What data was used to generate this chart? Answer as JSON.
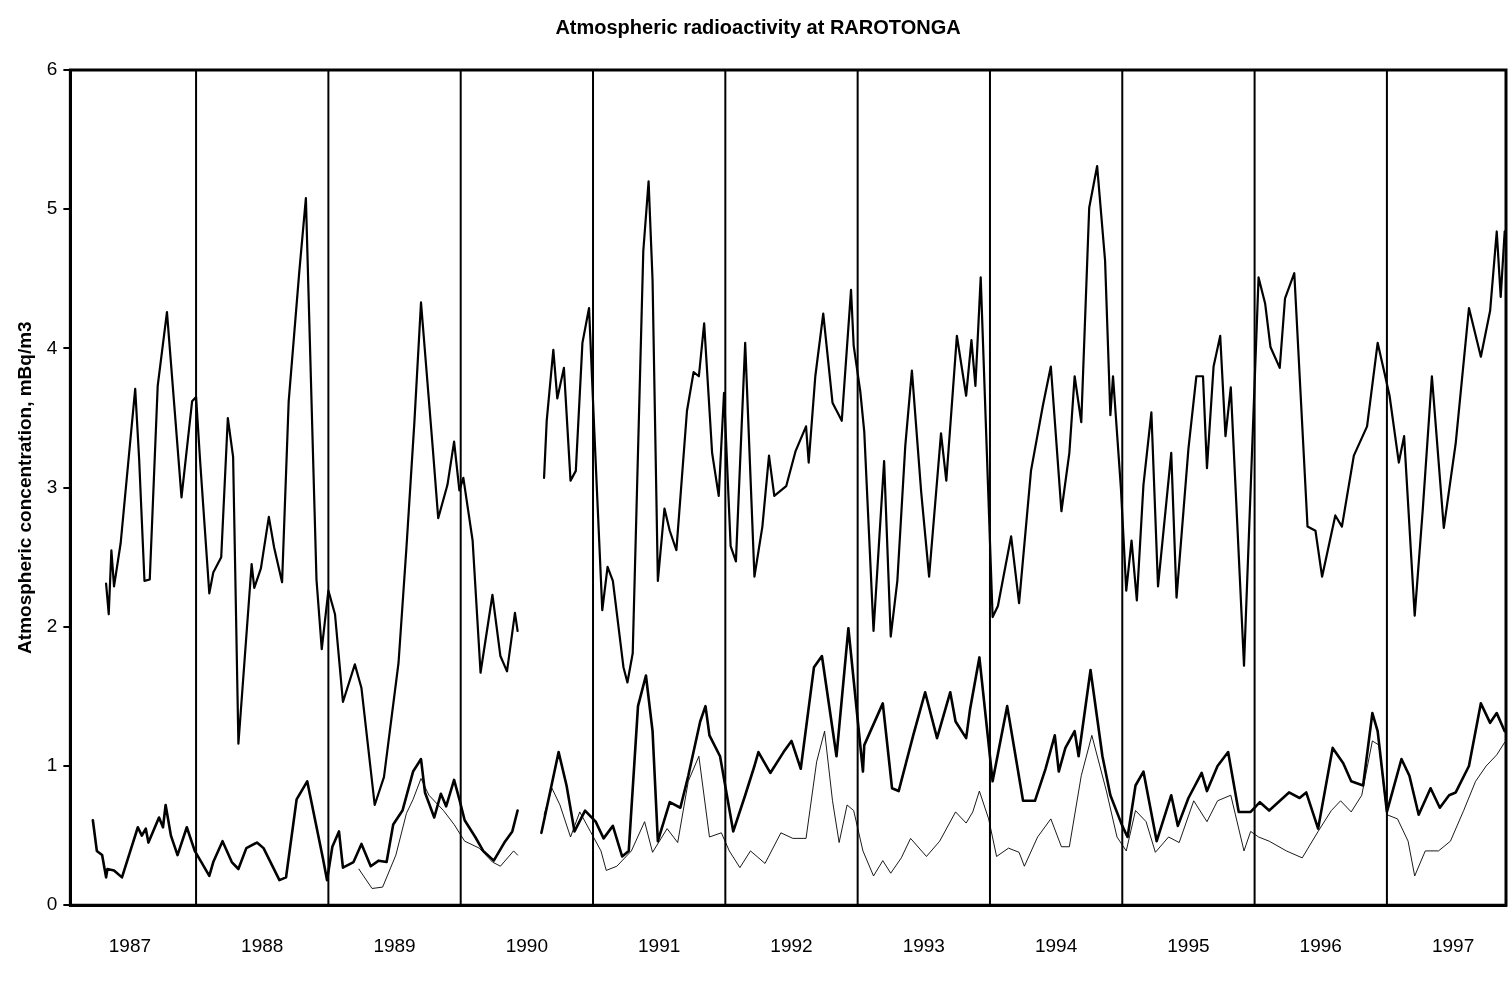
{
  "chart_data": {
    "type": "line",
    "title": "Atmospheric radioactivity at RAROTONGA",
    "ylabel": "Atmospheric concentration, mBq/m3",
    "xlim": [
      1987.05,
      1997.9
    ],
    "ylim": [
      0,
      6
    ],
    "yticks": [
      0,
      1,
      2,
      3,
      4,
      5,
      6
    ],
    "xticks": [
      {
        "value": 1987.5,
        "label": "1987"
      },
      {
        "value": 1988.5,
        "label": "1988"
      },
      {
        "value": 1989.5,
        "label": "1989"
      },
      {
        "value": 1990.5,
        "label": "1990"
      },
      {
        "value": 1991.5,
        "label": "1991"
      },
      {
        "value": 1992.5,
        "label": "1992"
      },
      {
        "value": 1993.5,
        "label": "1993"
      },
      {
        "value": 1994.5,
        "label": "1994"
      },
      {
        "value": 1995.5,
        "label": "1995"
      },
      {
        "value": 1996.5,
        "label": "1996"
      },
      {
        "value": 1997.5,
        "label": "1997"
      }
    ],
    "grid": false,
    "legend": false,
    "marker": "none",
    "line_style": "solid",
    "ref_lines": [
      {
        "axis": "x",
        "value": 1988,
        "color": "#000000"
      },
      {
        "axis": "x",
        "value": 1989,
        "color": "#000000"
      },
      {
        "axis": "x",
        "value": 1990,
        "color": "#000000"
      },
      {
        "axis": "x",
        "value": 1991,
        "color": "#000000"
      },
      {
        "axis": "x",
        "value": 1992,
        "color": "#000000"
      },
      {
        "axis": "x",
        "value": 1993,
        "color": "#000000"
      },
      {
        "axis": "x",
        "value": 1994,
        "color": "#000000"
      },
      {
        "axis": "x",
        "value": 1995,
        "color": "#000000"
      },
      {
        "axis": "x",
        "value": 1996,
        "color": "#000000"
      },
      {
        "axis": "x",
        "value": 1997,
        "color": "#000000"
      }
    ],
    "series": [
      {
        "color": "#000000",
        "x": [
          1987.32,
          1987.34,
          1987.36,
          1987.38,
          1987.43,
          1987.54,
          1987.57,
          1987.61,
          1987.65,
          1987.71,
          1987.78,
          1987.89,
          1987.97,
          1988.0,
          1988.03,
          1988.1,
          1988.13,
          1988.19,
          1988.24,
          1988.28,
          1988.32,
          1988.42,
          1988.44,
          1988.49,
          1988.55,
          1988.59,
          1988.65,
          1988.7,
          1988.78,
          1988.83,
          1988.91,
          1988.95,
          1989.0,
          1989.05,
          1989.11,
          1989.2,
          1989.25,
          1989.35,
          1989.42,
          1989.53,
          1989.59,
          1989.65,
          1989.7,
          1989.79,
          1989.83,
          1989.9,
          1989.95,
          1989.99,
          1990.02,
          1990.09,
          1990.15,
          1990.24,
          1990.3,
          1990.35,
          1990.41,
          1990.43,
          1990.5,
          1990.63,
          1990.65,
          1990.7,
          1990.73,
          1990.78,
          1990.83,
          1990.87,
          1990.92,
          1990.97,
          1991.01,
          1991.07,
          1991.11,
          1991.15,
          1991.23,
          1991.26,
          1991.3,
          1991.38,
          1991.42,
          1991.45,
          1991.49,
          1991.54,
          1991.58,
          1991.63,
          1991.71,
          1991.76,
          1991.8,
          1991.84,
          1991.9,
          1991.95,
          1991.99,
          1992.04,
          1992.08,
          1992.15,
          1992.22,
          1992.28,
          1992.33,
          1992.37,
          1992.46,
          1992.53,
          1992.61,
          1992.63,
          1992.68,
          1992.74,
          1992.81,
          1992.88,
          1992.95,
          1992.97,
          1993.02,
          1993.05,
          1993.12,
          1993.2,
          1993.25,
          1993.3,
          1993.36,
          1993.41,
          1993.48,
          1993.54,
          1993.63,
          1993.67,
          1993.75,
          1993.82,
          1993.86,
          1993.89,
          1993.93,
          1994.02,
          1994.06,
          1994.16,
          1994.22,
          1994.31,
          1994.4,
          1994.46,
          1994.54,
          1994.6,
          1994.64,
          1994.69,
          1994.75,
          1994.81,
          1994.87,
          1994.91,
          1994.93,
          1994.99,
          1995.03,
          1995.07,
          1995.11,
          1995.16,
          1995.22,
          1995.27,
          1995.37,
          1995.41,
          1995.5,
          1995.56,
          1995.61,
          1995.64,
          1995.69,
          1995.74,
          1995.78,
          1995.82,
          1995.92,
          1996.03,
          1996.08,
          1996.12,
          1996.19,
          1996.23,
          1996.3,
          1996.4,
          1996.46,
          1996.51,
          1996.61,
          1996.66,
          1996.75,
          1996.85,
          1996.93,
          1996.98,
          1997.02,
          1997.09,
          1997.13,
          1997.21,
          1997.27,
          1997.34,
          1997.43,
          1997.52,
          1997.62,
          1997.71,
          1997.78,
          1997.83,
          1997.86,
          1997.89
        ],
        "values": [
          2.31,
          2.09,
          2.55,
          2.29,
          2.6,
          3.71,
          3.2,
          2.33,
          2.34,
          3.73,
          4.26,
          2.93,
          3.62,
          3.65,
          3.2,
          2.24,
          2.39,
          2.5,
          3.5,
          3.22,
          1.16,
          2.45,
          2.28,
          2.42,
          2.79,
          2.57,
          2.32,
          3.62,
          4.55,
          5.08,
          2.34,
          1.84,
          2.26,
          2.09,
          1.46,
          1.73,
          1.56,
          0.72,
          0.92,
          1.74,
          2.57,
          3.47,
          4.33,
          3.27,
          2.78,
          3.02,
          3.33,
          2.98,
          3.07,
          2.62,
          1.67,
          2.23,
          1.79,
          1.68,
          2.1,
          1.97,
          null,
          3.07,
          3.48,
          3.99,
          3.64,
          3.86,
          3.05,
          3.12,
          4.04,
          4.29,
          3.4,
          2.12,
          2.43,
          2.33,
          1.71,
          1.6,
          1.81,
          4.7,
          5.2,
          4.49,
          2.33,
          2.85,
          2.69,
          2.55,
          3.55,
          3.83,
          3.8,
          4.18,
          3.25,
          2.94,
          3.68,
          2.58,
          2.47,
          4.04,
          2.36,
          2.72,
          3.23,
          2.94,
          3.01,
          3.26,
          3.44,
          3.18,
          3.8,
          4.25,
          3.61,
          3.48,
          4.42,
          4.02,
          3.69,
          3.4,
          1.97,
          3.19,
          1.93,
          2.33,
          3.3,
          3.84,
          2.97,
          2.36,
          3.39,
          3.05,
          4.09,
          3.66,
          4.06,
          3.73,
          4.51,
          2.07,
          2.15,
          2.65,
          2.17,
          3.12,
          3.59,
          3.87,
          2.83,
          3.25,
          3.8,
          3.47,
          5.01,
          5.31,
          4.63,
          3.52,
          3.8,
          2.99,
          2.26,
          2.62,
          2.19,
          3.02,
          3.54,
          2.29,
          3.25,
          2.21,
          3.28,
          3.8,
          3.8,
          3.14,
          3.87,
          4.09,
          3.37,
          3.72,
          1.72,
          4.51,
          4.32,
          4.01,
          3.86,
          4.36,
          4.54,
          2.72,
          2.69,
          2.36,
          2.8,
          2.72,
          3.23,
          3.44,
          4.04,
          3.83,
          3.66,
          3.18,
          3.37,
          2.08,
          2.83,
          3.8,
          2.71,
          3.32,
          4.29,
          3.94,
          4.27,
          4.84,
          4.37,
          4.84
        ]
      },
      {
        "color": "#000000",
        "x": [
          1987.22,
          1987.25,
          1987.29,
          1987.32,
          1987.33,
          1987.38,
          1987.44,
          1987.51,
          1987.56,
          1987.59,
          1987.62,
          1987.64,
          1987.72,
          1987.75,
          1987.77,
          1987.81,
          1987.86,
          1987.93,
          1987.99,
          1988.04,
          1988.1,
          1988.13,
          1988.2,
          1988.27,
          1988.32,
          1988.38,
          1988.46,
          1988.51,
          1988.63,
          1988.68,
          1988.76,
          1988.84,
          1988.9,
          1988.96,
          1988.99,
          1989.03,
          1989.08,
          1989.11,
          1989.19,
          1989.25,
          1989.32,
          1989.38,
          1989.44,
          1989.49,
          1989.56,
          1989.64,
          1989.7,
          1989.73,
          1989.8,
          1989.85,
          1989.89,
          1989.95,
          1989.99,
          1990.03,
          1990.11,
          1990.17,
          1990.25,
          1990.33,
          1990.39,
          1990.43,
          1990.5,
          1990.61,
          1990.74,
          1990.8,
          1990.86,
          1990.94,
          1991.02,
          1991.08,
          1991.15,
          1991.22,
          1991.27,
          1991.34,
          1991.4,
          1991.45,
          1991.49,
          1991.58,
          1991.66,
          1991.72,
          1991.81,
          1991.85,
          1991.88,
          1991.96,
          1992.06,
          1992.15,
          1992.22,
          1992.25,
          1992.34,
          1992.44,
          1992.5,
          1992.57,
          1992.67,
          1992.73,
          1992.84,
          1992.93,
          1993.04,
          1993.05,
          1993.19,
          1993.26,
          1993.31,
          1993.42,
          1993.51,
          1993.6,
          1993.7,
          1993.74,
          1993.82,
          1993.85,
          1993.92,
          1994.02,
          1994.13,
          1994.25,
          1994.34,
          1994.42,
          1994.49,
          1994.52,
          1994.57,
          1994.64,
          1994.67,
          1994.76,
          1994.85,
          1994.91,
          1995.0,
          1995.04,
          1995.1,
          1995.16,
          1995.26,
          1995.37,
          1995.42,
          1995.5,
          1995.6,
          1995.64,
          1995.72,
          1995.8,
          1995.88,
          1995.97,
          1996.04,
          1996.11,
          1996.26,
          1996.34,
          1996.39,
          1996.48,
          1996.59,
          1996.67,
          1996.73,
          1996.82,
          1996.89,
          1996.93,
          1997.0,
          1997.11,
          1997.17,
          1997.24,
          1997.33,
          1997.4,
          1997.47,
          1997.52,
          1997.62,
          1997.71,
          1997.78,
          1997.83,
          1997.89
        ],
        "values": [
          0.61,
          0.39,
          0.36,
          0.2,
          0.26,
          0.25,
          0.2,
          0.41,
          0.56,
          0.5,
          0.55,
          0.45,
          0.63,
          0.56,
          0.72,
          0.5,
          0.36,
          0.56,
          0.39,
          0.31,
          0.21,
          0.31,
          0.46,
          0.31,
          0.26,
          0.41,
          0.45,
          0.41,
          0.18,
          0.2,
          0.76,
          0.89,
          0.61,
          0.33,
          0.18,
          0.42,
          0.53,
          0.27,
          0.31,
          0.44,
          0.28,
          0.32,
          0.31,
          0.58,
          0.68,
          0.96,
          1.05,
          0.81,
          0.63,
          0.8,
          0.71,
          0.9,
          0.76,
          0.61,
          0.49,
          0.39,
          0.32,
          0.45,
          0.53,
          0.68,
          null,
          0.52,
          1.1,
          0.86,
          0.53,
          0.68,
          0.6,
          0.48,
          0.57,
          0.35,
          0.39,
          1.43,
          1.65,
          1.25,
          0.46,
          0.74,
          0.7,
          0.93,
          1.32,
          1.43,
          1.22,
          1.07,
          0.53,
          0.79,
          1.0,
          1.1,
          0.95,
          1.1,
          1.18,
          0.98,
          1.71,
          1.79,
          1.07,
          1.99,
          0.96,
          1.15,
          1.45,
          0.84,
          0.82,
          1.22,
          1.53,
          1.2,
          1.53,
          1.32,
          1.2,
          1.41,
          1.78,
          0.89,
          1.43,
          0.75,
          0.75,
          0.98,
          1.22,
          0.96,
          1.13,
          1.25,
          1.07,
          1.69,
          1.07,
          0.79,
          0.57,
          0.49,
          0.86,
          0.96,
          0.46,
          0.79,
          0.57,
          0.77,
          0.95,
          0.82,
          1.0,
          1.1,
          0.67,
          0.67,
          0.74,
          0.68,
          0.81,
          0.77,
          0.81,
          0.55,
          1.13,
          1.02,
          0.89,
          0.86,
          1.38,
          1.25,
          0.67,
          1.05,
          0.93,
          0.65,
          0.84,
          0.7,
          0.79,
          0.81,
          1.0,
          1.45,
          1.31,
          1.38,
          1.25
        ]
      },
      {
        "color": "#000000",
        "x": [
          1989.23,
          1989.33,
          1989.41,
          1989.51,
          1989.59,
          1989.64,
          1989.7,
          1989.76,
          1989.87,
          1989.95,
          1990.03,
          1990.14,
          1990.24,
          1990.3,
          1990.4,
          1990.43,
          1990.5,
          1990.63,
          1990.69,
          1990.75,
          1990.83,
          1990.9,
          1990.98,
          1991.06,
          1991.1,
          1991.18,
          1991.29,
          1991.39,
          1991.45,
          1991.56,
          1991.64,
          1991.72,
          1991.8,
          1991.88,
          1991.97,
          1992.03,
          1992.11,
          1992.19,
          1992.3,
          1992.42,
          1992.51,
          1992.61,
          1992.69,
          1992.75,
          1992.81,
          1992.86,
          1992.92,
          1992.97,
          1993.04,
          1993.12,
          1993.19,
          1993.25,
          1993.33,
          1993.4,
          1993.52,
          1993.62,
          1993.74,
          1993.82,
          1993.87,
          1993.92,
          1993.99,
          1994.05,
          1994.14,
          1994.22,
          1994.26,
          1994.36,
          1994.46,
          1994.54,
          1994.6,
          1994.69,
          1994.77,
          1994.88,
          1994.96,
          1995.03,
          1995.1,
          1995.18,
          1995.25,
          1995.35,
          1995.43,
          1995.54,
          1995.64,
          1995.72,
          1995.82,
          1995.92,
          1995.97,
          1996.03,
          1996.11,
          1996.24,
          1996.36,
          1996.48,
          1996.58,
          1996.65,
          1996.73,
          1996.81,
          1996.89,
          1996.94,
          1997.0,
          1997.08,
          1997.16,
          1997.21,
          1997.29,
          1997.39,
          1997.48,
          1997.58,
          1997.67,
          1997.75,
          1997.83,
          1997.89
        ],
        "values": [
          0.26,
          0.12,
          0.13,
          0.36,
          0.66,
          0.76,
          0.91,
          0.79,
          0.68,
          0.58,
          0.46,
          0.41,
          0.31,
          0.28,
          0.39,
          0.36,
          null,
          0.65,
          0.84,
          0.72,
          0.49,
          0.67,
          0.53,
          0.39,
          0.25,
          0.28,
          0.39,
          0.6,
          0.38,
          0.55,
          0.45,
          0.89,
          1.07,
          0.49,
          0.52,
          0.39,
          0.27,
          0.39,
          0.3,
          0.52,
          0.48,
          0.48,
          1.03,
          1.25,
          0.75,
          0.45,
          0.72,
          0.68,
          0.39,
          0.21,
          0.32,
          0.23,
          0.34,
          0.48,
          0.35,
          0.46,
          0.67,
          0.59,
          0.67,
          0.82,
          0.62,
          0.35,
          0.41,
          0.38,
          0.28,
          0.49,
          0.62,
          0.42,
          0.42,
          0.93,
          1.22,
          0.82,
          0.49,
          0.39,
          0.68,
          0.6,
          0.38,
          0.49,
          0.45,
          0.75,
          0.6,
          0.75,
          0.79,
          0.39,
          0.53,
          0.49,
          0.46,
          0.39,
          0.34,
          0.53,
          0.68,
          0.75,
          0.67,
          0.79,
          1.18,
          1.15,
          0.65,
          0.62,
          0.46,
          0.21,
          0.39,
          0.39,
          0.46,
          0.68,
          0.89,
          1.0,
          1.08,
          1.17
        ]
      }
    ]
  }
}
